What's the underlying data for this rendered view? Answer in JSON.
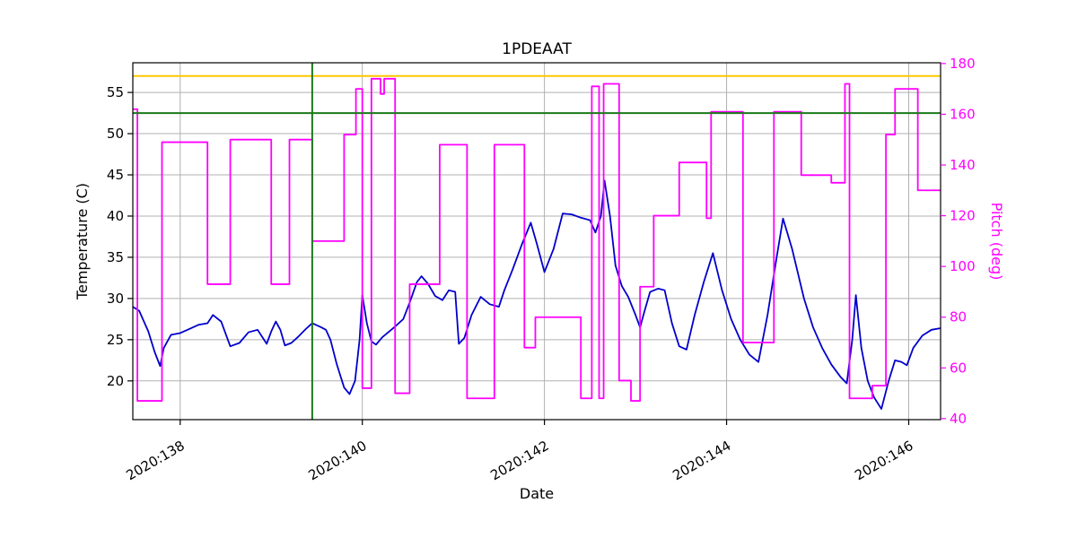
{
  "chart": {
    "title": "1PDEAAT",
    "xlabel": "Date",
    "ylabel_left": "Temperature (C)",
    "ylabel_right": "Pitch (deg)",
    "colors": {
      "temperature_line": "#0000cc",
      "pitch_line": "#ff00ff",
      "yellow_limit": "#ffc800",
      "green_limit": "#1a7a1a",
      "grid": "#b0b0b0",
      "frame": "#000000"
    }
  },
  "chart_data": {
    "type": "line",
    "title": "1PDEAAT",
    "xlabel": "Date",
    "grid": true,
    "x_axis": {
      "range": [
        137.48,
        146.35
      ],
      "ticks": [
        {
          "value": 138,
          "label": "2020:138"
        },
        {
          "value": 140,
          "label": "2020:140"
        },
        {
          "value": 142,
          "label": "2020:142"
        },
        {
          "value": 144,
          "label": "2020:144"
        },
        {
          "value": 146,
          "label": "2020:146"
        }
      ]
    },
    "y_left": {
      "label": "Temperature (C)",
      "range": [
        15.3,
        58.6
      ],
      "ticks": [
        20,
        25,
        30,
        35,
        40,
        45,
        50,
        55
      ]
    },
    "y_right": {
      "label": "Pitch (deg)",
      "range": [
        39.6,
        180.3
      ],
      "ticks": [
        40,
        60,
        80,
        100,
        120,
        140,
        160,
        180
      ]
    },
    "annotations": {
      "yellow_limit_temperature": 57.0,
      "green_limit_temperature": 52.5,
      "green_vline_x": 139.45
    },
    "series": [
      {
        "name": "temperature",
        "axis": "left",
        "color": "#0000cc",
        "step": false,
        "x": [
          137.48,
          137.55,
          137.65,
          137.72,
          137.78,
          137.82,
          137.9,
          138.0,
          138.1,
          138.2,
          138.3,
          138.36,
          138.45,
          138.55,
          138.65,
          138.75,
          138.85,
          138.95,
          139.0,
          139.05,
          139.1,
          139.15,
          139.22,
          139.3,
          139.38,
          139.45,
          139.55,
          139.6,
          139.65,
          139.72,
          139.8,
          139.86,
          139.92,
          139.97,
          140.0,
          140.05,
          140.1,
          140.15,
          140.22,
          140.35,
          140.45,
          140.52,
          140.6,
          140.65,
          140.72,
          140.8,
          140.88,
          140.95,
          141.02,
          141.06,
          141.12,
          141.2,
          141.3,
          141.4,
          141.5,
          141.56,
          141.65,
          141.75,
          141.85,
          141.92,
          142.0,
          142.1,
          142.2,
          142.3,
          142.4,
          142.5,
          142.56,
          142.62,
          142.66,
          142.72,
          142.78,
          142.85,
          142.92,
          143.0,
          143.05,
          143.1,
          143.16,
          143.25,
          143.32,
          143.4,
          143.48,
          143.56,
          143.65,
          143.75,
          143.85,
          143.95,
          144.05,
          144.15,
          144.25,
          144.35,
          144.45,
          144.55,
          144.62,
          144.72,
          144.85,
          144.95,
          145.05,
          145.15,
          145.25,
          145.32,
          145.38,
          145.42,
          145.48,
          145.55,
          145.62,
          145.7,
          145.78,
          145.85,
          145.92,
          145.98,
          146.05,
          146.15,
          146.25,
          146.35
        ],
        "y": [
          29.0,
          28.5,
          26.0,
          23.5,
          21.8,
          24.0,
          25.6,
          25.8,
          26.3,
          26.8,
          27.0,
          28.0,
          27.2,
          24.2,
          24.6,
          25.9,
          26.2,
          24.5,
          26.0,
          27.2,
          26.2,
          24.3,
          24.6,
          25.4,
          26.3,
          27.0,
          26.5,
          26.2,
          25.0,
          22.0,
          19.2,
          18.4,
          20.0,
          25.0,
          30.4,
          27.0,
          24.8,
          24.4,
          25.3,
          26.5,
          27.5,
          29.5,
          32.0,
          32.7,
          31.8,
          30.3,
          29.8,
          31.0,
          30.8,
          24.5,
          25.2,
          28.0,
          30.2,
          29.3,
          29.0,
          31.0,
          33.5,
          36.5,
          39.2,
          36.5,
          33.2,
          36.0,
          40.3,
          40.2,
          39.8,
          39.5,
          38.0,
          40.0,
          44.3,
          40.0,
          34.0,
          31.5,
          30.2,
          28.0,
          26.5,
          28.5,
          30.8,
          31.2,
          31.0,
          27.0,
          24.2,
          23.8,
          28.0,
          32.0,
          35.5,
          31.0,
          27.5,
          25.0,
          23.2,
          22.3,
          28.0,
          35.0,
          39.7,
          36.0,
          30.0,
          26.5,
          24.0,
          22.0,
          20.5,
          19.7,
          25.0,
          30.4,
          24.0,
          20.0,
          18.0,
          16.6,
          20.0,
          22.5,
          22.3,
          21.9,
          24.0,
          25.5,
          26.2,
          26.4
        ]
      },
      {
        "name": "pitch",
        "axis": "right",
        "color": "#ff00ff",
        "step": true,
        "x": [
          137.48,
          137.53,
          137.8,
          138.3,
          138.55,
          139.0,
          139.2,
          139.45,
          139.8,
          139.93,
          140.0,
          140.1,
          140.2,
          140.24,
          140.36,
          140.52,
          140.85,
          141.15,
          141.45,
          141.78,
          141.9,
          142.4,
          142.52,
          142.6,
          142.65,
          142.82,
          142.95,
          143.05,
          143.2,
          143.48,
          143.78,
          143.83,
          144.18,
          144.52,
          144.82,
          145.15,
          145.3,
          145.35,
          145.6,
          145.75,
          145.85,
          146.1
        ],
        "y": [
          162,
          47,
          149,
          93,
          150,
          93,
          150,
          110,
          152,
          170,
          52,
          174,
          168,
          174,
          50,
          93,
          148,
          48,
          148,
          68,
          80,
          48,
          171,
          48,
          172,
          55,
          47,
          92,
          120,
          141,
          119,
          161,
          70,
          161,
          136,
          133,
          172,
          48,
          53,
          152,
          170,
          130
        ]
      }
    ]
  }
}
